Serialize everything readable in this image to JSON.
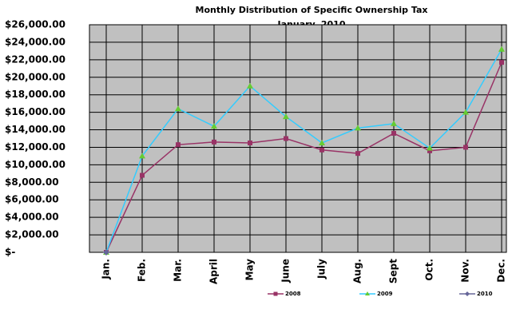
{
  "chart_data": {
    "type": "line",
    "title": "Monthly Distribution of Specific Ownership Tax",
    "subtitle": "January, 2010",
    "categories": [
      "Jan.",
      "Feb.",
      "Mar.",
      "April",
      "May",
      "June",
      "July",
      "Aug.",
      "Sept",
      "Oct.",
      "Nov.",
      "Dec."
    ],
    "series": [
      {
        "name": "2008",
        "color": "#993366",
        "marker_color": "#993366",
        "marker": "square",
        "values": [
          0,
          8800,
          12300,
          12600,
          12500,
          13000,
          11700,
          11300,
          13600,
          11600,
          12000,
          21700
        ]
      },
      {
        "name": "2009",
        "color": "#33ccff",
        "marker_color": "#66cc33",
        "marker": "triangle",
        "values": [
          0,
          11000,
          16400,
          14400,
          19000,
          15500,
          12500,
          14200,
          14700,
          11900,
          16000,
          23200
        ]
      },
      {
        "name": "2010",
        "color": "#666699",
        "marker_color": "#666699",
        "marker": "diamond",
        "values": [
          0,
          null,
          null,
          null,
          null,
          null,
          null,
          null,
          null,
          null,
          null,
          null
        ]
      }
    ],
    "ylim": [
      0,
      26000
    ],
    "yticks": [
      {
        "value": 0,
        "label": "$-"
      },
      {
        "value": 2000,
        "label": "$2,000.00"
      },
      {
        "value": 4000,
        "label": "$4,000.00"
      },
      {
        "value": 6000,
        "label": "$6,000.00"
      },
      {
        "value": 8000,
        "label": "$8,000.00"
      },
      {
        "value": 10000,
        "label": "$10,000.00"
      },
      {
        "value": 12000,
        "label": "$12,000.00"
      },
      {
        "value": 14000,
        "label": "$14,000.00"
      },
      {
        "value": 16000,
        "label": "$16,000.00"
      },
      {
        "value": 18000,
        "label": "$18,000.00"
      },
      {
        "value": 20000,
        "label": "$20,000.00"
      },
      {
        "value": 22000,
        "label": "$22,000.00"
      },
      {
        "value": 24000,
        "label": "$24,000.00"
      },
      {
        "value": 26000,
        "label": "$26,000.00"
      }
    ],
    "grid": true,
    "legend": "bottom"
  }
}
